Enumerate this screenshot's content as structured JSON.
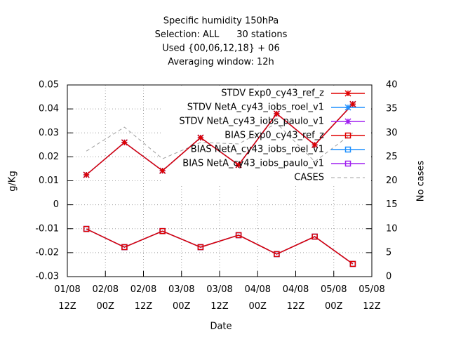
{
  "chart_data": {
    "type": "line",
    "title": [
      "Specific humidity 150hPa",
      "Selection: ALL      30 stations",
      "Used {00,06,12,18} + 06",
      "Averaging window: 12h"
    ],
    "xlabel": "Date",
    "ylabel": "g/Kg",
    "y2label": "No cases",
    "x": [
      "01/08 18Z",
      "02/08 06Z",
      "02/08 18Z",
      "03/08 06Z",
      "03/08 18Z",
      "04/08 06Z",
      "04/08 18Z",
      "05/08 06Z"
    ],
    "xlim": [
      "01/08 12Z",
      "05/08 12Z"
    ],
    "xticks": [
      "01/08 12Z",
      "02/08 00Z",
      "02/08 12Z",
      "03/08 00Z",
      "03/08 12Z",
      "04/08 00Z",
      "04/08 12Z",
      "05/08 00Z",
      "05/08 12Z"
    ],
    "ylim": [
      -0.03,
      0.05
    ],
    "yticks": [
      -0.03,
      -0.02,
      -0.01,
      0,
      0.01,
      0.02,
      0.03,
      0.04,
      0.05
    ],
    "y2lim": [
      0,
      40
    ],
    "y2ticks": [
      0,
      5,
      10,
      15,
      20,
      25,
      30,
      35,
      40
    ],
    "grid": true,
    "legend": "top-right",
    "series": [
      {
        "name": "STDV Exp0_cy43_ref_z",
        "color": "#e00000",
        "marker": "star",
        "values": [
          0.0125,
          0.026,
          0.0142,
          0.028,
          0.0166,
          0.038,
          0.025,
          0.042
        ]
      },
      {
        "name": "STDV NetA_cy43_iobs_roel_v1",
        "color": "#1e90ff",
        "marker": "star",
        "values": [
          0.0125,
          0.026,
          0.0142,
          0.028,
          0.0166,
          0.038,
          0.025,
          0.042
        ]
      },
      {
        "name": "STDV NetA_cy43_iobs_paulo_v1",
        "color": "#a020f0",
        "marker": "star",
        "values": [
          0.0125,
          0.026,
          0.0142,
          0.028,
          0.0166,
          0.038,
          0.025,
          0.042
        ]
      },
      {
        "name": "BIAS Exp0_cy43_ref_z",
        "color": "#e00000",
        "marker": "square",
        "values": [
          -0.0101,
          -0.0177,
          -0.011,
          -0.0177,
          -0.0127,
          -0.0206,
          -0.0133,
          -0.0247
        ]
      },
      {
        "name": "BIAS NetA_cy43_iobs_roel_v1",
        "color": "#1e90ff",
        "marker": "square",
        "values": [
          -0.0101,
          -0.0177,
          -0.011,
          -0.0177,
          -0.0127,
          -0.0206,
          -0.0133,
          -0.0247
        ]
      },
      {
        "name": "BIAS NetA_cy43_iobs_paulo_v1",
        "color": "#a020f0",
        "marker": "square",
        "values": [
          -0.0101,
          -0.0177,
          -0.011,
          -0.0177,
          -0.0127,
          -0.0206,
          -0.0133,
          -0.0247
        ]
      },
      {
        "name": "CASES",
        "color": "#a0a0a0",
        "marker": "none",
        "dash": true,
        "axis": "y2",
        "values": [
          26.2,
          31.2,
          24.6,
          28,
          27.7,
          32,
          24,
          30
        ]
      }
    ]
  }
}
